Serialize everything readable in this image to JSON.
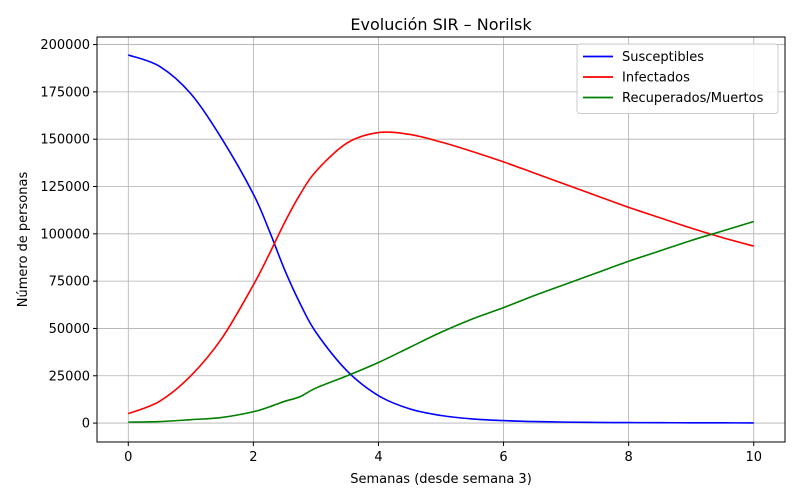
{
  "chart_data": {
    "type": "line",
    "title": "Evolución SIR – Norilsk",
    "xlabel": "Semanas (desde semana 3)",
    "ylabel": "Número de personas",
    "xlim": [
      -0.5,
      10.5
    ],
    "ylim": [
      -10000,
      204000
    ],
    "xticks": [
      0,
      2,
      4,
      6,
      8,
      10
    ],
    "xtick_labels": [
      "0",
      "2",
      "4",
      "6",
      "8",
      "10"
    ],
    "yticks": [
      0,
      25000,
      50000,
      75000,
      100000,
      125000,
      150000,
      175000,
      200000
    ],
    "ytick_labels": [
      "0",
      "25000",
      "50000",
      "75000",
      "100000",
      "125000",
      "150000",
      "175000",
      "200000"
    ],
    "grid": true,
    "legend_position": "top-right",
    "x": [
      0,
      0.5,
      1,
      1.5,
      2,
      2.25,
      2.5,
      2.75,
      3,
      3.5,
      4,
      4.5,
      5,
      5.5,
      6,
      6.5,
      7,
      7.5,
      8,
      8.5,
      9,
      9.5,
      10
    ],
    "series": [
      {
        "name": "Susceptibles",
        "color": "#0000ff",
        "values": [
          194500,
          188500,
          174000,
          150000,
          121000,
          102000,
          81000,
          63000,
          48000,
          27500,
          14500,
          7500,
          4000,
          2200,
          1300,
          800,
          500,
          350,
          250,
          200,
          150,
          120,
          100
        ]
      },
      {
        "name": "Infectados",
        "color": "#ff0000",
        "values": [
          5000,
          11500,
          25000,
          45000,
          73000,
          89000,
          106000,
          121000,
          133000,
          148000,
          153500,
          152500,
          148500,
          143500,
          138000,
          132000,
          126000,
          120000,
          114000,
          108500,
          103000,
          98000,
          93500
        ]
      },
      {
        "name": "Recuperados/Muertos",
        "color": "#008000",
        "values": [
          500,
          800,
          1800,
          3000,
          6000,
          8500,
          11500,
          14000,
          18500,
          25000,
          32000,
          40000,
          48000,
          55000,
          61000,
          67500,
          73500,
          79500,
          85500,
          91000,
          96500,
          101500,
          106500
        ]
      }
    ]
  }
}
